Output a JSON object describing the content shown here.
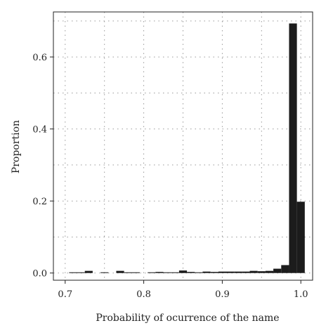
{
  "chart_data": {
    "type": "bar",
    "title": "",
    "xlabel": "Probability of ocurrence of the name",
    "ylabel": "Proportion",
    "xlim": [
      0.685,
      1.015
    ],
    "ylim": [
      -0.02,
      0.725
    ],
    "x_ticks": [
      {
        "value": 0.7,
        "label": "0.7"
      },
      {
        "value": 0.8,
        "label": "0.8"
      },
      {
        "value": 0.9,
        "label": "0.9"
      },
      {
        "value": 1.0,
        "label": "1.0"
      }
    ],
    "y_ticks": [
      {
        "value": 0.0,
        "label": "0.0"
      },
      {
        "value": 0.2,
        "label": "0.2"
      },
      {
        "value": 0.4,
        "label": "0.4"
      },
      {
        "value": 0.6,
        "label": "0.6"
      }
    ],
    "grid": true,
    "bin_width": 0.01,
    "bars": [
      {
        "x": 0.71,
        "y": 0.002
      },
      {
        "x": 0.72,
        "y": 0.002
      },
      {
        "x": 0.73,
        "y": 0.006
      },
      {
        "x": 0.75,
        "y": 0.002
      },
      {
        "x": 0.77,
        "y": 0.006
      },
      {
        "x": 0.78,
        "y": 0.002
      },
      {
        "x": 0.79,
        "y": 0.002
      },
      {
        "x": 0.81,
        "y": 0.002
      },
      {
        "x": 0.82,
        "y": 0.003
      },
      {
        "x": 0.83,
        "y": 0.002
      },
      {
        "x": 0.84,
        "y": 0.002
      },
      {
        "x": 0.85,
        "y": 0.007
      },
      {
        "x": 0.86,
        "y": 0.003
      },
      {
        "x": 0.87,
        "y": 0.002
      },
      {
        "x": 0.88,
        "y": 0.004
      },
      {
        "x": 0.89,
        "y": 0.003
      },
      {
        "x": 0.9,
        "y": 0.004
      },
      {
        "x": 0.91,
        "y": 0.004
      },
      {
        "x": 0.92,
        "y": 0.004
      },
      {
        "x": 0.93,
        "y": 0.004
      },
      {
        "x": 0.94,
        "y": 0.006
      },
      {
        "x": 0.95,
        "y": 0.005
      },
      {
        "x": 0.96,
        "y": 0.006
      },
      {
        "x": 0.97,
        "y": 0.012
      },
      {
        "x": 0.98,
        "y": 0.022
      },
      {
        "x": 0.99,
        "y": 0.693
      },
      {
        "x": 1.0,
        "y": 0.198
      }
    ],
    "colors": {
      "bar": "#1c1c1c",
      "grid": "#9a9a9a",
      "axis": "#222222"
    }
  }
}
